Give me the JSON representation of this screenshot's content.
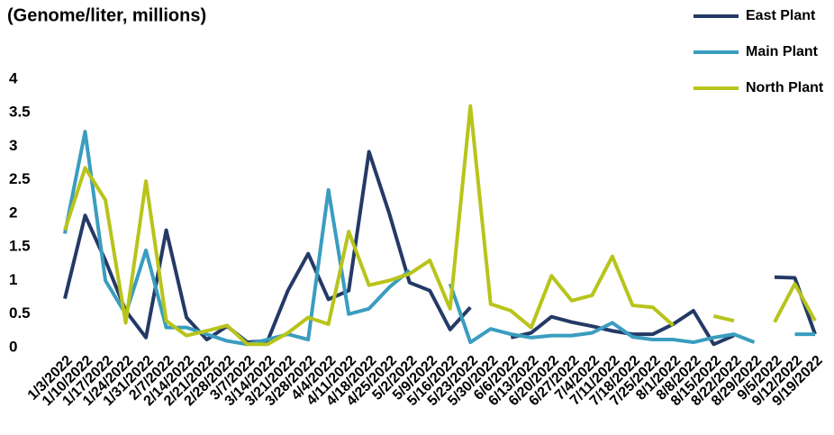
{
  "chart_data": {
    "type": "line",
    "title": "(Genome/liter, millions)",
    "categories": [
      "1/3/2022",
      "1/10/2022",
      "1/17/2022",
      "1/24/2022",
      "1/31/2022",
      "2/7/2022",
      "2/14/2022",
      "2/21/2022",
      "2/28/2022",
      "3/7/2022",
      "3/14/2022",
      "3/21/2022",
      "3/28/2022",
      "4/4/2022",
      "4/11/2022",
      "4/18/2022",
      "4/25/2022",
      "5/2/2022",
      "5/9/2022",
      "5/16/2022",
      "5/23/2022",
      "5/30/2022",
      "6/6/2022",
      "6/13/2022",
      "6/20/2022",
      "6/27/2022",
      "7/4/2022",
      "7/11/2022",
      "7/18/2022",
      "7/25/2022",
      "8/1/2022",
      "8/8/2022",
      "8/15/2022",
      "8/22/2022",
      "8/29/2022",
      "9/5/2022",
      "9/12/2022",
      "9/19/2022"
    ],
    "series": [
      {
        "name": "East Plant",
        "color": "#243a66",
        "values": [
          0.73,
          1.97,
          1.3,
          0.55,
          0.15,
          1.75,
          0.45,
          0.12,
          0.32,
          0.08,
          0.1,
          0.85,
          1.4,
          0.72,
          0.85,
          2.92,
          2.0,
          0.97,
          0.85,
          0.27,
          0.6,
          null,
          0.15,
          0.22,
          0.46,
          0.38,
          0.32,
          0.25,
          0.2,
          0.2,
          0.35,
          0.55,
          0.05,
          0.18,
          null,
          1.05,
          1.04,
          0.2
        ]
      },
      {
        "name": "Main Plant",
        "color": "#3a9dbf",
        "values": [
          1.7,
          3.22,
          1.0,
          0.5,
          1.45,
          0.3,
          0.3,
          0.2,
          0.1,
          0.05,
          0.12,
          0.2,
          0.12,
          2.35,
          0.5,
          0.58,
          0.9,
          1.15,
          null,
          0.95,
          0.08,
          0.28,
          0.2,
          0.15,
          0.18,
          0.18,
          0.22,
          0.37,
          0.16,
          0.12,
          0.12,
          0.08,
          0.15,
          0.2,
          0.08,
          null,
          0.2,
          0.2
        ]
      },
      {
        "name": "North Plant",
        "color": "#b8c41a",
        "values": [
          1.75,
          2.68,
          2.2,
          0.37,
          2.48,
          0.4,
          0.18,
          0.25,
          0.33,
          0.05,
          0.05,
          0.22,
          0.45,
          0.35,
          1.73,
          0.93,
          1.0,
          1.1,
          1.3,
          0.58,
          3.6,
          0.65,
          0.55,
          0.3,
          1.07,
          0.7,
          0.78,
          1.36,
          0.63,
          0.6,
          0.33,
          null,
          0.47,
          0.4,
          null,
          0.38,
          0.95,
          0.4
        ]
      }
    ],
    "ylim": [
      0,
      4
    ],
    "yticks": [
      0,
      0.5,
      1,
      1.5,
      2,
      2.5,
      3,
      3.5,
      4
    ],
    "grid": false,
    "legend": "top-right"
  }
}
